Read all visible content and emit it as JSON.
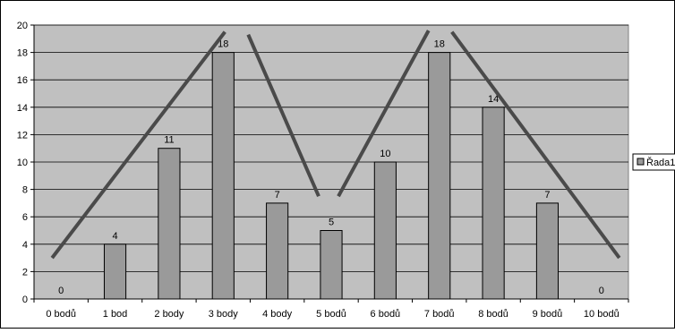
{
  "chart_data": {
    "type": "bar",
    "categories": [
      "0 bodů",
      "1 bod",
      "2 body",
      "3 body",
      "4 body",
      "5 bodů",
      "6 bodů",
      "7 bodů",
      "8 bodů",
      "9 bodů",
      "10 bodů"
    ],
    "series": [
      {
        "name": "Řada1",
        "values": [
          0,
          4,
          11,
          18,
          7,
          5,
          10,
          18,
          14,
          7,
          0
        ]
      }
    ],
    "data_labels": [
      "0",
      "4",
      "11",
      "18",
      "7",
      "5",
      "10",
      "18",
      "14",
      "7",
      "0"
    ],
    "y_ticks": [
      "0",
      "2",
      "4",
      "6",
      "8",
      "10",
      "12",
      "14",
      "16",
      "18",
      "20"
    ],
    "ylim": [
      0,
      20
    ],
    "grid": true,
    "legend_position": "right",
    "colors": {
      "plot_background": "#c0c0c0",
      "bar_fill": "#9a9a9a",
      "overlay_line": "#4a4a4a"
    }
  }
}
